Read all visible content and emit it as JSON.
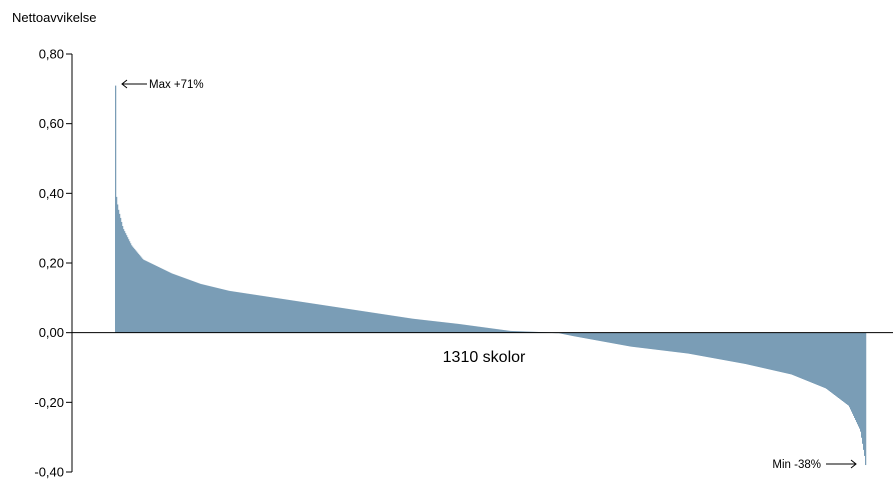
{
  "chart_data": {
    "type": "bar",
    "ylabel": "Nettoavvikelse",
    "xlabel": "1310 skolor",
    "n_schools": 1310,
    "ylim": [
      -0.4,
      0.8
    ],
    "yticks": [
      0.8,
      0.6,
      0.4,
      0.2,
      0.0,
      -0.2,
      -0.4
    ],
    "ytick_labels": [
      "0,80",
      "0,60",
      "0,40",
      "0,20",
      "0,00",
      "-0,20",
      "-0,40"
    ],
    "bar_color": "#7a9db6",
    "sorted": "descending",
    "max": {
      "value": 0.71,
      "label": "Max +71%"
    },
    "min": {
      "value": -0.38,
      "label": "Min -38%"
    },
    "profile": [
      {
        "rank": 1,
        "value": 0.71
      },
      {
        "rank": 2,
        "value": 0.41
      },
      {
        "rank": 6,
        "value": 0.36
      },
      {
        "rank": 15,
        "value": 0.3
      },
      {
        "rank": 30,
        "value": 0.25
      },
      {
        "rank": 50,
        "value": 0.21
      },
      {
        "rank": 100,
        "value": 0.17
      },
      {
        "rank": 150,
        "value": 0.14
      },
      {
        "rank": 200,
        "value": 0.12
      },
      {
        "rank": 280,
        "value": 0.1
      },
      {
        "rank": 360,
        "value": 0.08
      },
      {
        "rank": 440,
        "value": 0.06
      },
      {
        "rank": 520,
        "value": 0.04
      },
      {
        "rank": 600,
        "value": 0.025
      },
      {
        "rank": 690,
        "value": 0.005
      },
      {
        "rank": 770,
        "value": 0.0
      },
      {
        "rank": 800,
        "value": -0.01
      },
      {
        "rank": 900,
        "value": -0.04
      },
      {
        "rank": 1000,
        "value": -0.06
      },
      {
        "rank": 1100,
        "value": -0.09
      },
      {
        "rank": 1180,
        "value": -0.12
      },
      {
        "rank": 1240,
        "value": -0.16
      },
      {
        "rank": 1280,
        "value": -0.21
      },
      {
        "rank": 1300,
        "value": -0.28
      },
      {
        "rank": 1310,
        "value": -0.38
      }
    ]
  }
}
